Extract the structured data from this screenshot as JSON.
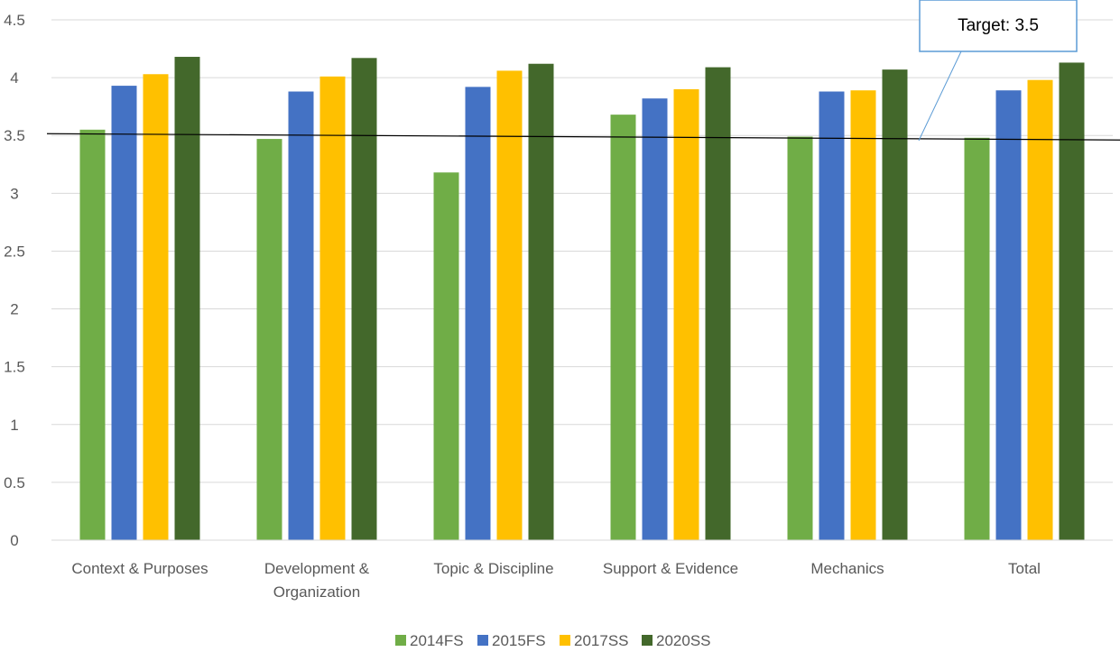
{
  "chart_data": {
    "type": "bar",
    "categories": [
      [
        "Context & Purposes"
      ],
      [
        "Development &",
        "Organization"
      ],
      [
        "Topic & Discipline"
      ],
      [
        "Support & Evidence"
      ],
      [
        "Mechanics"
      ],
      [
        "Total"
      ]
    ],
    "series": [
      {
        "name": "2014FS",
        "color": "#70AD47",
        "values": [
          3.55,
          3.47,
          3.18,
          3.68,
          3.49,
          3.48
        ]
      },
      {
        "name": "2015FS",
        "color": "#4472C4",
        "values": [
          3.93,
          3.88,
          3.92,
          3.82,
          3.88,
          3.89
        ]
      },
      {
        "name": "2017SS",
        "color": "#FFC000",
        "values": [
          4.03,
          4.01,
          4.06,
          3.9,
          3.89,
          3.98
        ]
      },
      {
        "name": "2020SS",
        "color": "#43682B",
        "values": [
          4.18,
          4.17,
          4.12,
          4.09,
          4.07,
          4.13
        ]
      }
    ],
    "ylim": [
      0,
      4.5
    ],
    "yticks": [
      "0",
      "0.5",
      "1",
      "1.5",
      "2",
      "2.5",
      "3",
      "3.5",
      "4",
      "4.5"
    ],
    "grid": true,
    "legend": "bottom",
    "target_line": {
      "value": 3.5
    },
    "annotation": {
      "text": "Target: 3.5",
      "border_color": "#5B9BD5"
    }
  }
}
